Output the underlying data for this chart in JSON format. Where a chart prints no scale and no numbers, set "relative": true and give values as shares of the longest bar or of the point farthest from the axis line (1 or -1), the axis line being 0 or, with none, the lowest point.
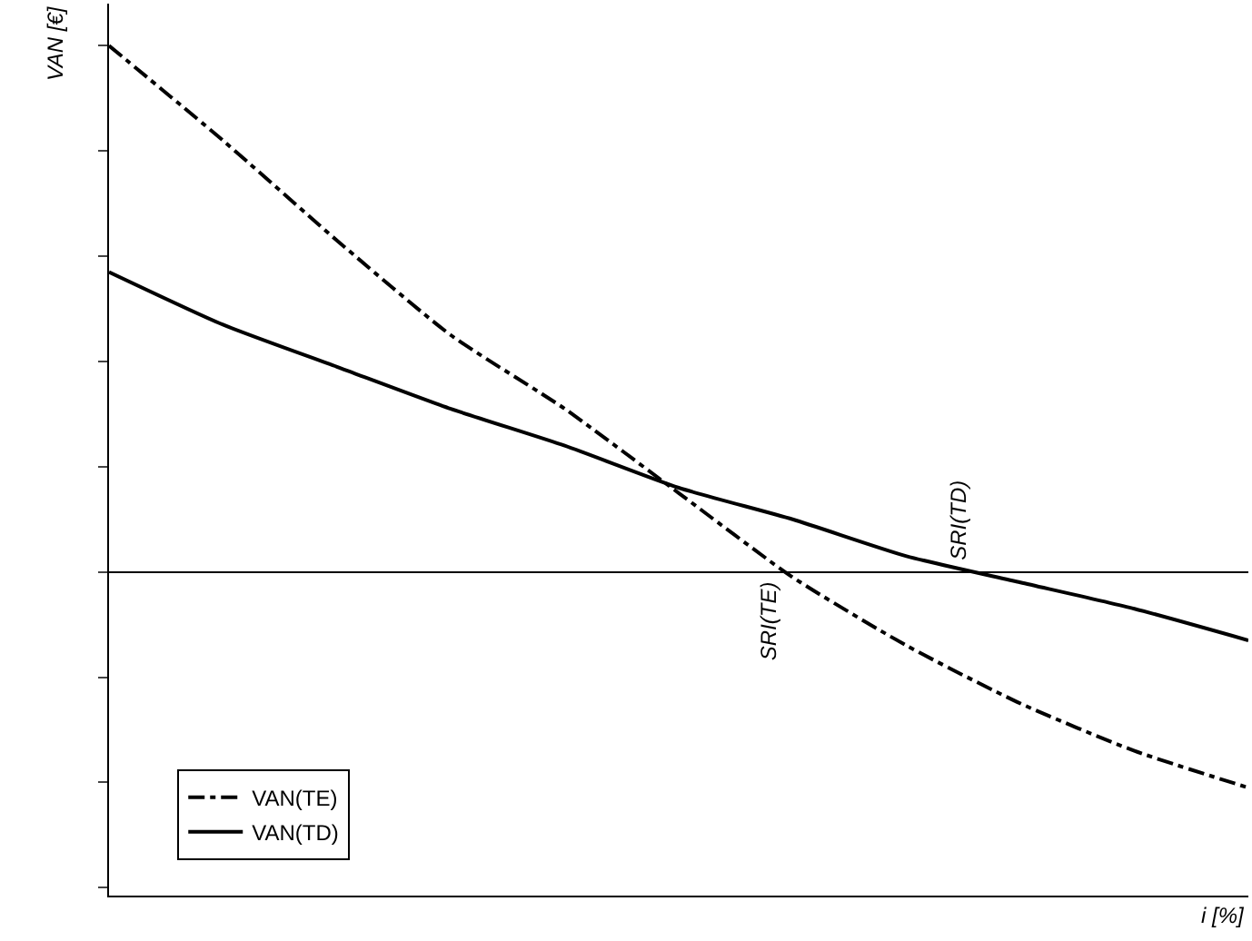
{
  "chart_data": {
    "type": "line",
    "relative": true,
    "ylabel": "VAN [€]",
    "categories": [
      null,
      null,
      null,
      null,
      null,
      null,
      null,
      null,
      null,
      null,
      null
    ],
    "series": [
      {
        "name": "VAN(TE)",
        "color": "#000000",
        "line_style": "dashdot",
        "values": [
          1,
          0.82,
          0.63,
          0.45,
          0.31,
          0.15,
          -0.01,
          -0.14,
          -0.25,
          -0.34,
          -0.41
        ]
      },
      {
        "name": "VAN(TD)",
        "color": "#000000",
        "line_style": "solid",
        "values": [
          0.57,
          0.47,
          0.39,
          0.31,
          0.24,
          0.16,
          0.1,
          0.03,
          -0.02,
          -0.07,
          -0.13
        ]
      }
    ],
    "annotations": [
      "SRI(TE)",
      "SRI(TD)",
      "i [%]"
    ],
    "legend": "bottom left",
    "marker": "none"
  }
}
